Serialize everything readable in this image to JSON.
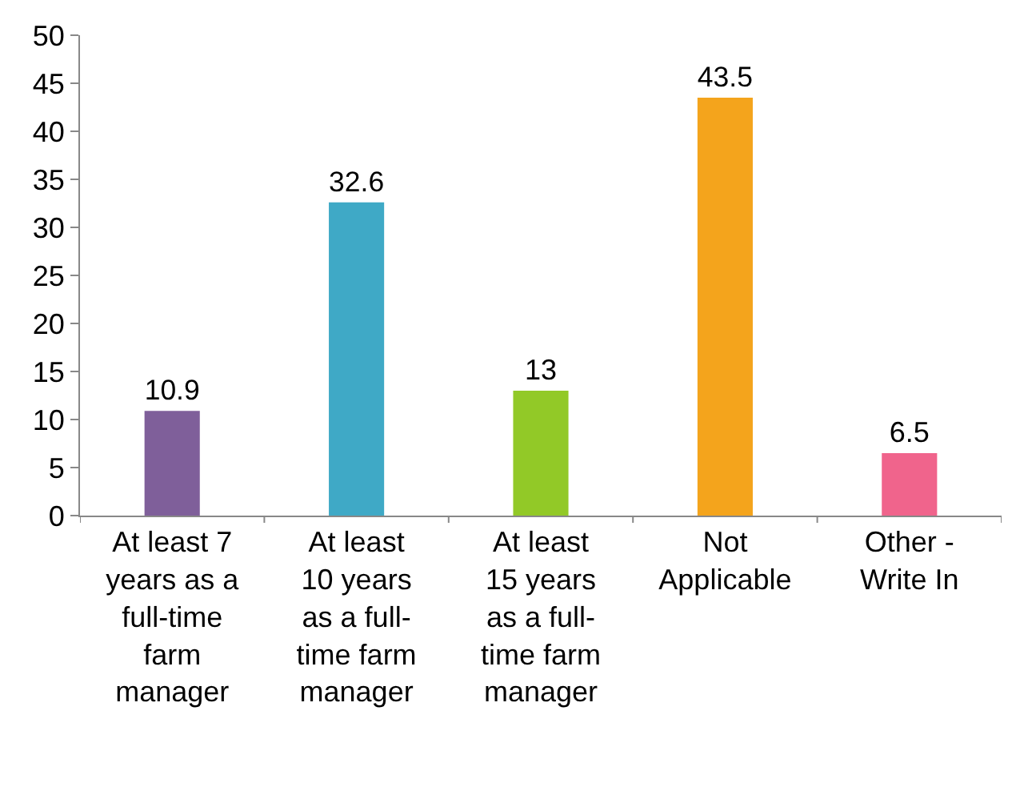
{
  "chart_data": {
    "type": "bar",
    "categories": [
      "At least 7 years as a full-time farm manager",
      "At least 10 years as a full-time farm manager",
      "At least 15 years as a full-time farm manager",
      "Not Applicable",
      "Other - Write In"
    ],
    "values": [
      10.9,
      32.6,
      13,
      43.5,
      6.5
    ],
    "colors": [
      "#7f5f9a",
      "#3fa9c6",
      "#92c927",
      "#f4a41c",
      "#f0648c"
    ],
    "ylim": [
      0,
      50
    ],
    "yticks": [
      0,
      5,
      10,
      15,
      20,
      25,
      30,
      35,
      40,
      45,
      50
    ],
    "data_labels": true
  }
}
